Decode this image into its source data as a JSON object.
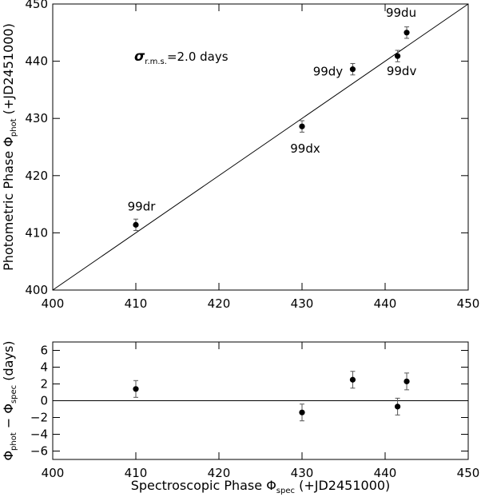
{
  "chart_data": [
    {
      "type": "scatter",
      "panel": "top",
      "title": "",
      "xlabel": "",
      "ylabel": "Photometric Phase Φphot (+JD2451000)",
      "ylabel_parts": {
        "pre": "Photometric Phase Φ",
        "sub": "phot",
        "post": " (+JD2451000)"
      },
      "xlim": [
        400,
        450
      ],
      "ylim": [
        400,
        450
      ],
      "xticks": [
        400,
        410,
        420,
        430,
        440,
        450
      ],
      "yticks": [
        400,
        410,
        420,
        430,
        440,
        450
      ],
      "xtick_labels": [
        "400",
        "410",
        "420",
        "430",
        "440",
        "450"
      ],
      "ytick_labels": [
        "400",
        "410",
        "420",
        "430",
        "440",
        "450"
      ],
      "annotation": {
        "symbol": "σ",
        "sub": "r.m.s.",
        "text": "=2.0 days"
      },
      "fit_line": {
        "x": [
          400,
          450
        ],
        "y": [
          400,
          450
        ]
      },
      "points": [
        {
          "label": "99dr",
          "x": 410.0,
          "y": 411.4,
          "yerr": 1.0
        },
        {
          "label": "99dx",
          "x": 430.0,
          "y": 428.6,
          "yerr": 1.0
        },
        {
          "label": "99dy",
          "x": 436.1,
          "y": 438.6,
          "yerr": 1.0
        },
        {
          "label": "99dv",
          "x": 441.5,
          "y": 440.9,
          "yerr": 1.0
        },
        {
          "label": "99du",
          "x": 442.6,
          "y": 445.0,
          "yerr": 1.0
        }
      ]
    },
    {
      "type": "scatter",
      "panel": "bottom",
      "title": "",
      "xlabel": "Spectroscopic Phase Φspec (+JD2451000)",
      "xlabel_parts": {
        "pre": "Spectroscopic Phase  Φ",
        "sub": "spec",
        "post": " (+JD2451000)"
      },
      "ylabel": "Φphot − Φspec (days)",
      "ylabel_parts": {
        "pre": "Φ",
        "sub1": "phot",
        "mid": " − Φ",
        "sub2": "spec",
        "post": " (days)"
      },
      "xlim": [
        400,
        450
      ],
      "ylim": [
        -7,
        7
      ],
      "xticks": [
        400,
        410,
        420,
        430,
        440,
        450
      ],
      "yticks": [
        -6,
        -4,
        -2,
        0,
        2,
        4,
        6
      ],
      "xtick_labels": [
        "400",
        "410",
        "420",
        "430",
        "440",
        "450"
      ],
      "ytick_labels": [
        "−6",
        "−4",
        "−2",
        "0",
        "2",
        "4",
        "6"
      ],
      "zero_line": 0,
      "points": [
        {
          "x": 410.0,
          "y": 1.4,
          "yerr": 1.0
        },
        {
          "x": 430.0,
          "y": -1.4,
          "yerr": 1.0
        },
        {
          "x": 436.1,
          "y": 2.5,
          "yerr": 1.0
        },
        {
          "x": 441.5,
          "y": -0.7,
          "yerr": 1.0
        },
        {
          "x": 442.6,
          "y": 2.3,
          "yerr": 1.0
        }
      ]
    }
  ]
}
